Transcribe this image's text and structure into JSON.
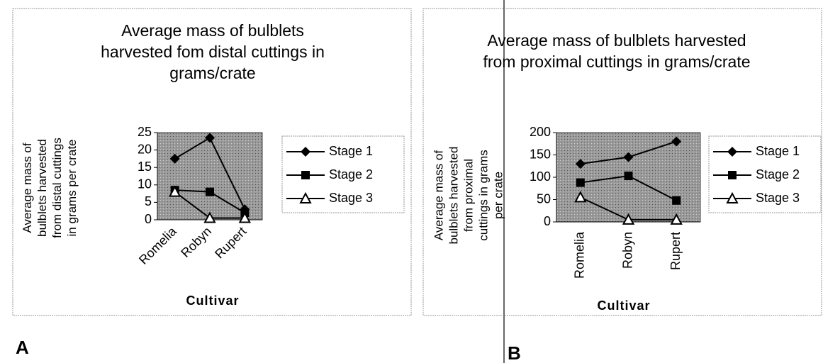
{
  "chart_data": [
    {
      "type": "line",
      "title": "Average mass of bulblets harvested fom distal cuttings in grams/crate",
      "y_label": "Average mass of bulblets harvested from distal cuttings in grams per crate",
      "x_label": "Cultivar",
      "panel_label": "A",
      "categories": [
        "Romelia",
        "Robyn",
        "Rupert"
      ],
      "series": [
        {
          "name": "Stage 1",
          "color": "#000000",
          "marker": "diamond",
          "values": [
            17.5,
            23.5,
            3
          ]
        },
        {
          "name": "Stage 2",
          "color": "#000000",
          "marker": "square",
          "values": [
            8.5,
            8,
            2
          ]
        },
        {
          "name": "Stage 3",
          "color": "#000000",
          "marker": "triangle",
          "values": [
            8,
            0.5,
            0.5
          ]
        }
      ],
      "ylim": [
        0,
        25
      ],
      "yticks": [
        0,
        5,
        10,
        15,
        20,
        25
      ],
      "legend": "right"
    },
    {
      "type": "line",
      "title": "Average mass of bulblets harvested from proximal cuttings in grams/crate",
      "y_label": "Average mass of bulblets harvested from proximal cuttings in grams per crate",
      "x_label": "Cultivar",
      "panel_label": "B",
      "categories": [
        "Romelia",
        "Robyn",
        "Rupert"
      ],
      "series": [
        {
          "name": "Stage 1",
          "color": "#000000",
          "marker": "diamond",
          "values": [
            130,
            145,
            180
          ]
        },
        {
          "name": "Stage 2",
          "color": "#000000",
          "marker": "square",
          "values": [
            88,
            103,
            48
          ]
        },
        {
          "name": "Stage 3",
          "color": "#000000",
          "marker": "triangle",
          "values": [
            55,
            5,
            5
          ]
        }
      ],
      "ylim": [
        0,
        200
      ],
      "yticks": [
        0,
        50,
        100,
        150,
        200
      ],
      "legend": "right"
    }
  ]
}
